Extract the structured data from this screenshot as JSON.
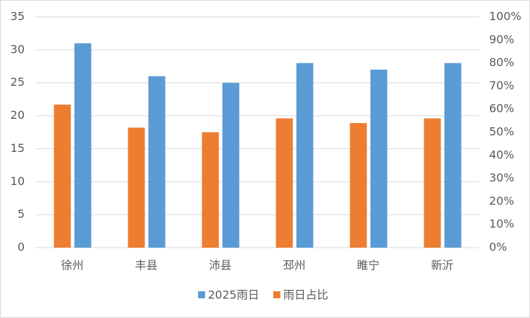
{
  "chart_data": {
    "type": "bar",
    "categories": [
      "徐州",
      "丰县",
      "沛县",
      "邳州",
      "睢宁",
      "新沂"
    ],
    "series": [
      {
        "name": "2025雨日",
        "color": "#5b9bd5",
        "values": [
          31,
          26,
          25,
          28,
          27,
          28
        ]
      },
      {
        "name": "雨日占比",
        "color": "#ed7d31",
        "axis": "y2",
        "values": [
          62,
          52,
          50,
          56,
          54,
          56
        ]
      }
    ],
    "ylim": [
      0,
      35
    ],
    "yticks": [
      0,
      5,
      10,
      15,
      20,
      25,
      30,
      35
    ],
    "y2lim": [
      0,
      100
    ],
    "y2ticks": [
      {
        "value": 0,
        "label": "0%"
      },
      {
        "value": 10,
        "label": "10%"
      },
      {
        "value": 20,
        "label": "20%"
      },
      {
        "value": 30,
        "label": "30%"
      },
      {
        "value": 40,
        "label": "40%"
      },
      {
        "value": 50,
        "label": "50%"
      },
      {
        "value": 60,
        "label": "60%"
      },
      {
        "value": 70,
        "label": "70%"
      },
      {
        "value": 80,
        "label": "80%"
      },
      {
        "value": 90,
        "label": "90%"
      },
      {
        "value": 100,
        "label": "100%"
      }
    ],
    "grid": true,
    "legend": "bottom"
  }
}
